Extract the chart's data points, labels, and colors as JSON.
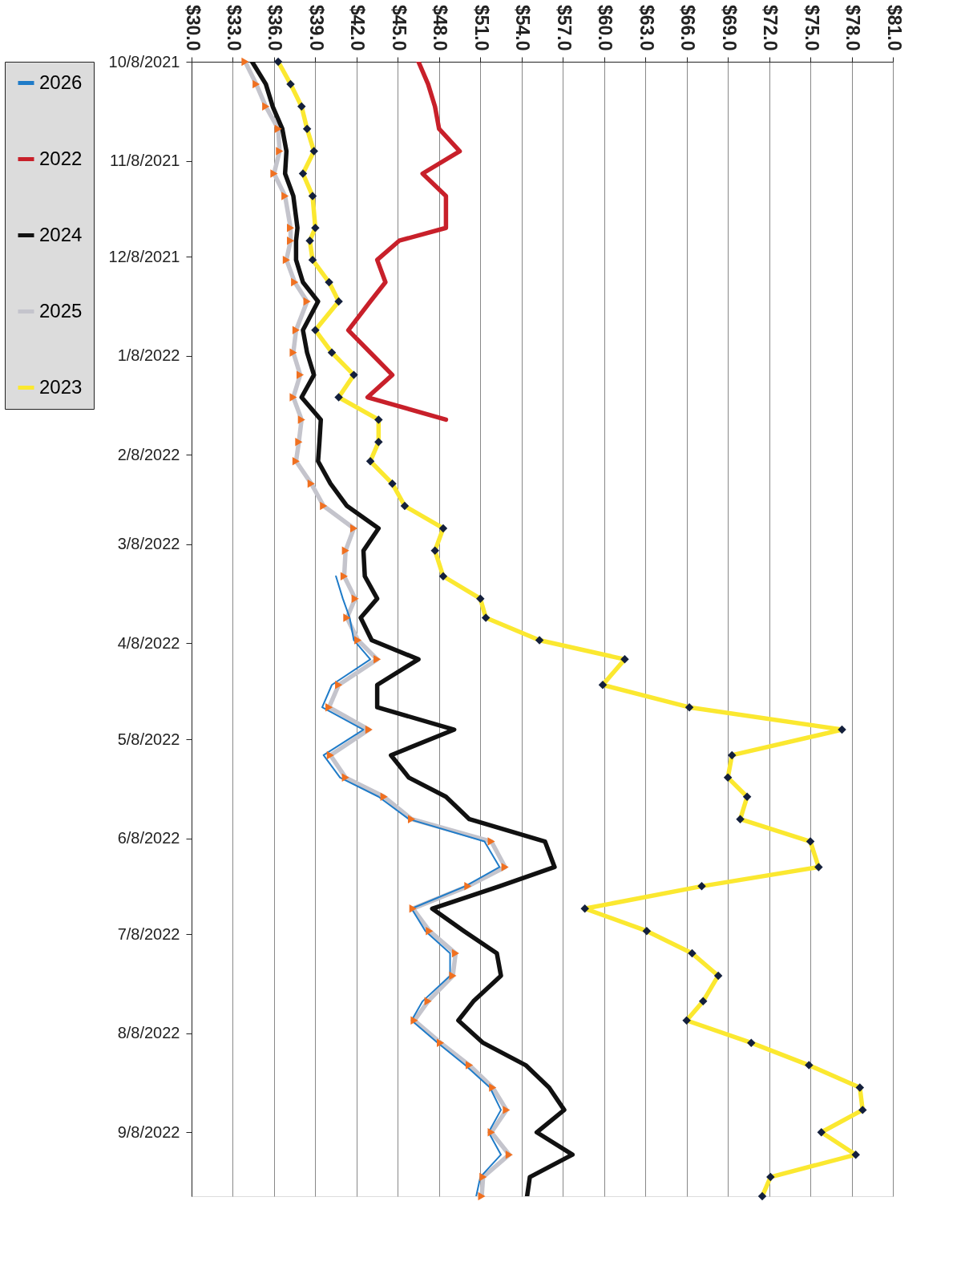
{
  "chart_data": {
    "type": "line",
    "x": [
      "2021-10-08",
      "2021-10-15",
      "2021-10-22",
      "2021-10-29",
      "2021-11-05",
      "2021-11-12",
      "2021-11-19",
      "2021-11-29",
      "2021-12-03",
      "2021-12-09",
      "2021-12-16",
      "2021-12-22",
      "2021-12-31",
      "2022-01-07",
      "2022-01-14",
      "2022-01-21",
      "2022-01-28",
      "2022-02-04",
      "2022-02-10",
      "2022-02-17",
      "2022-02-24",
      "2022-03-03",
      "2022-03-10",
      "2022-03-18",
      "2022-03-25",
      "2022-03-31",
      "2022-04-07",
      "2022-04-13",
      "2022-04-21",
      "2022-04-28",
      "2022-05-05",
      "2022-05-13",
      "2022-05-20",
      "2022-05-26",
      "2022-06-02",
      "2022-06-09",
      "2022-06-17",
      "2022-06-23",
      "2022-06-30",
      "2022-07-07",
      "2022-07-14",
      "2022-07-21",
      "2022-07-29",
      "2022-08-04",
      "2022-08-11",
      "2022-08-18",
      "2022-08-25",
      "2022-09-01",
      "2022-09-08",
      "2022-09-15",
      "2022-09-22",
      "2022-09-28"
    ],
    "series": [
      {
        "name": "2026",
        "color": "#1f7bc8",
        "marker": "none",
        "values": [
          null,
          null,
          null,
          null,
          null,
          null,
          null,
          null,
          null,
          null,
          null,
          null,
          null,
          null,
          null,
          null,
          null,
          null,
          null,
          null,
          null,
          null,
          null,
          40.5,
          41.0,
          41.5,
          41.8,
          43.0,
          40.2,
          39.5,
          42.5,
          39.6,
          40.8,
          43.6,
          45.8,
          51.3,
          52.4,
          49.9,
          46.0,
          47.0,
          48.8,
          48.8,
          46.8,
          46.0,
          47.9,
          49.9,
          51.7,
          52.5,
          51.6,
          52.5,
          51.0,
          50.7
        ]
      },
      {
        "name": "2022",
        "color": "#c8202a",
        "marker": "none",
        "values": [
          46.5,
          47.2,
          47.7,
          48.0,
          49.5,
          46.8,
          48.5,
          48.5,
          45.1,
          43.5,
          44.1,
          43.0,
          41.4,
          43.0,
          44.6,
          42.8,
          48.5,
          null,
          null,
          null,
          null,
          null,
          null,
          null,
          null,
          null,
          null,
          null,
          null,
          null,
          null,
          null,
          null,
          null,
          null,
          null,
          null,
          null,
          null,
          null,
          null,
          null,
          null,
          null,
          null,
          null,
          null,
          null,
          null,
          null,
          null,
          null
        ]
      },
      {
        "name": "2024",
        "color": "#111111",
        "marker": "none",
        "values": [
          34.4,
          35.4,
          35.9,
          36.6,
          36.9,
          36.8,
          37.4,
          37.7,
          37.6,
          37.6,
          38.1,
          39.2,
          38.1,
          38.4,
          38.9,
          38.0,
          39.4,
          39.3,
          39.2,
          40.1,
          41.3,
          43.6,
          42.5,
          42.6,
          43.5,
          42.3,
          43.1,
          46.5,
          43.5,
          43.5,
          49.1,
          44.5,
          45.8,
          48.5,
          50.2,
          55.7,
          56.4,
          52.4,
          47.5,
          49.8,
          52.2,
          52.5,
          50.5,
          49.4,
          51.2,
          54.3,
          56.0,
          57.1,
          55.1,
          57.7,
          54.6,
          54.4
        ]
      },
      {
        "name": "2025",
        "color": "#c4c4cc",
        "marker": "triangle",
        "values": [
          33.9,
          34.7,
          35.4,
          36.3,
          36.4,
          36.0,
          36.8,
          37.2,
          37.2,
          36.9,
          37.5,
          38.4,
          37.6,
          37.4,
          37.9,
          37.4,
          38.0,
          37.8,
          37.6,
          38.7,
          39.6,
          41.8,
          41.2,
          41.1,
          41.9,
          41.3,
          42.1,
          43.5,
          40.7,
          40.0,
          42.9,
          40.1,
          41.2,
          44.0,
          46.0,
          51.8,
          52.8,
          50.1,
          46.1,
          47.3,
          49.2,
          49.0,
          47.2,
          46.2,
          48.1,
          50.2,
          51.9,
          52.9,
          51.8,
          53.1,
          51.2,
          51.1
        ]
      },
      {
        "name": "2023",
        "color": "#fbe830",
        "marker": "diamond",
        "values": [
          36.3,
          37.2,
          38.0,
          38.4,
          38.9,
          38.1,
          38.8,
          39.0,
          38.6,
          38.8,
          40.0,
          40.7,
          39.0,
          40.2,
          41.8,
          40.7,
          43.6,
          43.6,
          43.0,
          44.6,
          45.5,
          48.3,
          47.7,
          48.3,
          51.0,
          51.4,
          55.3,
          61.5,
          59.9,
          66.2,
          77.3,
          69.3,
          69.0,
          70.4,
          69.9,
          75.0,
          75.6,
          67.1,
          58.6,
          63.1,
          66.4,
          68.3,
          67.2,
          66.0,
          70.7,
          74.9,
          78.6,
          78.8,
          75.8,
          78.3,
          72.1,
          71.5
        ]
      }
    ],
    "orientation": "horizontal",
    "ylim": [
      "2022-09-28",
      "2021-10-08"
    ],
    "yticks": [
      {
        "value": "2021-10-08",
        "label": "10/8/2021"
      },
      {
        "value": "2021-11-08",
        "label": "11/8/2021"
      },
      {
        "value": "2021-12-08",
        "label": "12/8/2021"
      },
      {
        "value": "2022-01-08",
        "label": "1/8/2022"
      },
      {
        "value": "2022-02-08",
        "label": "2/8/2022"
      },
      {
        "value": "2022-03-08",
        "label": "3/8/2022"
      },
      {
        "value": "2022-04-08",
        "label": "4/8/2022"
      },
      {
        "value": "2022-05-08",
        "label": "5/8/2022"
      },
      {
        "value": "2022-06-08",
        "label": "6/8/2022"
      },
      {
        "value": "2022-07-08",
        "label": "7/8/2022"
      },
      {
        "value": "2022-08-08",
        "label": "8/8/2022"
      },
      {
        "value": "2022-09-08",
        "label": "9/8/2022"
      }
    ],
    "xlim": [
      30,
      81
    ],
    "xticks": [
      {
        "value": 30,
        "label": "$30.0"
      },
      {
        "value": 33,
        "label": "$33.0"
      },
      {
        "value": 36,
        "label": "$36.0"
      },
      {
        "value": 39,
        "label": "$39.0"
      },
      {
        "value": 42,
        "label": "$42.0"
      },
      {
        "value": 45,
        "label": "$45.0"
      },
      {
        "value": 48,
        "label": "$48.0"
      },
      {
        "value": 51,
        "label": "$51.0"
      },
      {
        "value": 54,
        "label": "$54.0"
      },
      {
        "value": 57,
        "label": "$57.0"
      },
      {
        "value": 60,
        "label": "$60.0"
      },
      {
        "value": 63,
        "label": "$63.0"
      },
      {
        "value": 66,
        "label": "$66.0"
      },
      {
        "value": 69,
        "label": "$69.0"
      },
      {
        "value": 72,
        "label": "$72.0"
      },
      {
        "value": 75,
        "label": "$75.0"
      },
      {
        "value": 78,
        "label": "$78.0"
      },
      {
        "value": 81,
        "label": "$81.0"
      }
    ],
    "grid": "x",
    "legend": "left"
  }
}
